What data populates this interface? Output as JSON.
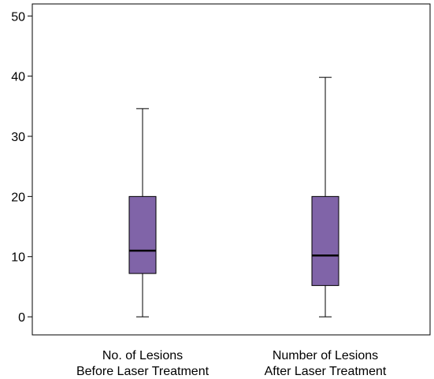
{
  "chart_data": {
    "type": "box",
    "title": "",
    "xlabel": "",
    "ylabel": "",
    "ylim": [
      -3,
      52
    ],
    "yticks": [
      0,
      10,
      20,
      30,
      40,
      50
    ],
    "grid": false,
    "box_color": "#8064a8",
    "categories": [
      {
        "line1": "No. of Lesions",
        "line2": "Before Laser Treatment"
      },
      {
        "line1": "Number of Lesions",
        "line2": "After Laser Treatment"
      }
    ],
    "boxes": [
      {
        "min": 0,
        "q1": 7.2,
        "median": 11,
        "q3": 20,
        "max": 34.6
      },
      {
        "min": 0,
        "q1": 5.2,
        "median": 10.2,
        "q3": 20,
        "max": 39.8
      }
    ]
  }
}
